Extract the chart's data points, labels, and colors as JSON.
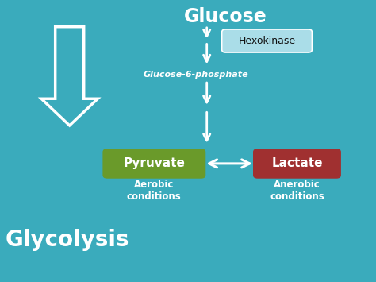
{
  "bg_color": "#3aabbc",
  "title_glucose": "Glucose",
  "title_glycolysis": "Glycolysis",
  "label_hexokinase": "Hexokinase",
  "label_g6p": "Glucose-6-phosphate",
  "label_pyruvate": "Pyruvate",
  "label_lactate": "Lactate",
  "label_aerobic": "Aerobic\nconditions",
  "label_anaerobic": "Anerobic\nconditions",
  "hexokinase_box_color": "#aadde8",
  "pyruvate_box_color": "#6a9a2a",
  "lactate_box_color": "#a03030",
  "arrow_color": "white",
  "text_color_white": "white",
  "text_color_dark": "#111111",
  "figsize": [
    4.74,
    3.55
  ],
  "dpi": 100
}
